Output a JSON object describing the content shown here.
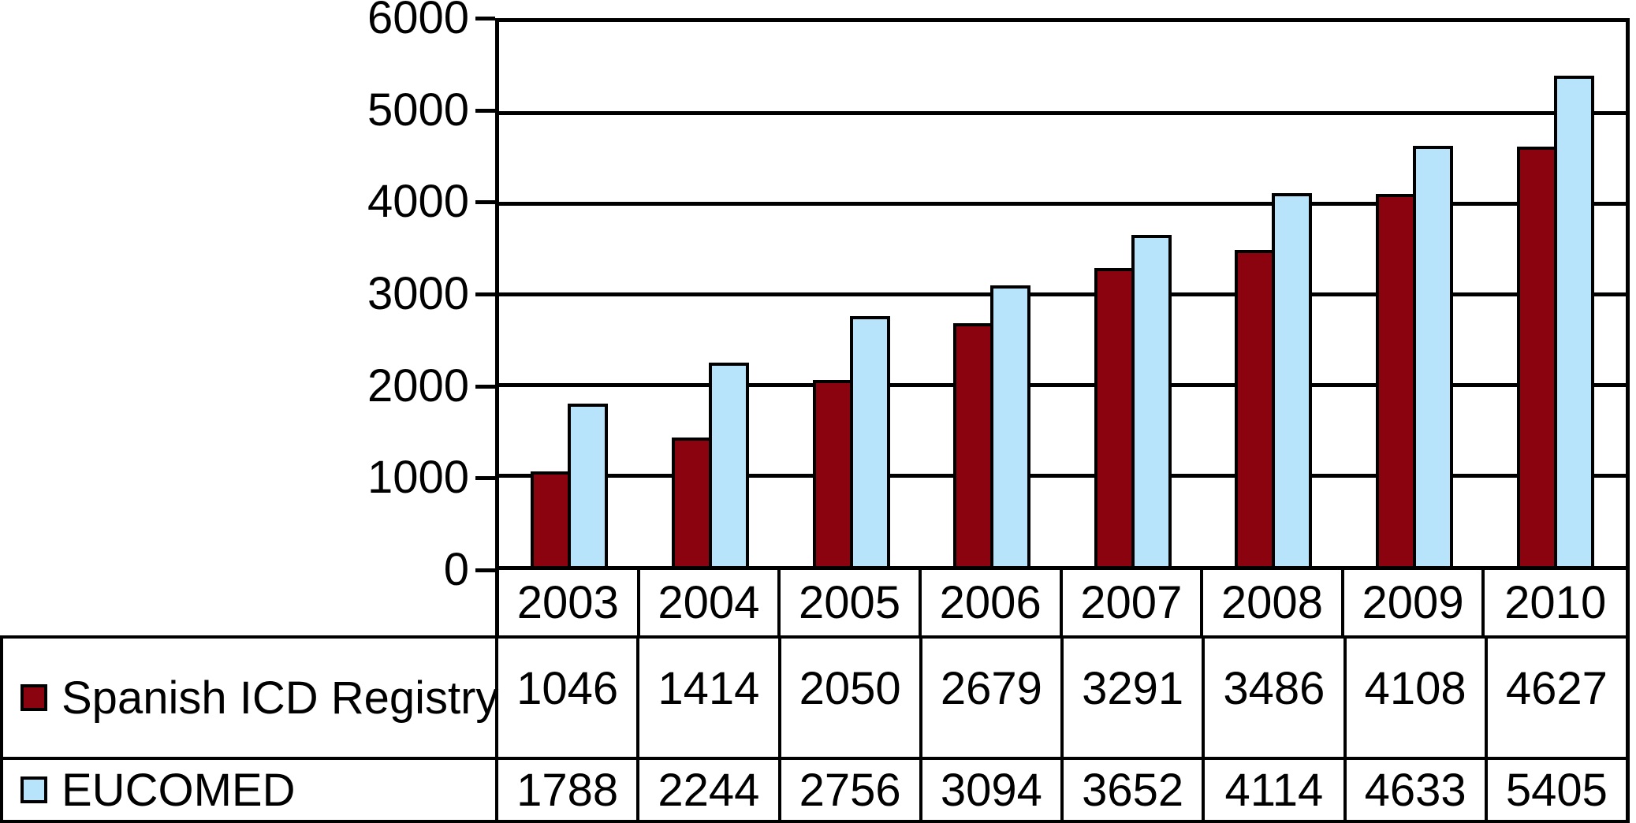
{
  "chart_data": {
    "type": "bar",
    "categories": [
      "2003",
      "2004",
      "2005",
      "2006",
      "2007",
      "2008",
      "2009",
      "2010"
    ],
    "series": [
      {
        "name": "Spanish ICD Registry",
        "key": "spanish-icd-registry",
        "color": "#8B030F",
        "values": [
          1046,
          1414,
          2050,
          2679,
          3291,
          3486,
          4108,
          4627
        ]
      },
      {
        "name": "EUCOMED",
        "key": "eucomed",
        "color": "#B8E4FB",
        "values": [
          1788,
          2244,
          2756,
          3094,
          3652,
          4114,
          4633,
          5405
        ]
      }
    ],
    "ylim": [
      0,
      6000
    ],
    "y_ticks": [
      0,
      1000,
      2000,
      3000,
      4000,
      5000,
      6000
    ],
    "y_tick_labels": [
      "0",
      "1000",
      "2000",
      "3000",
      "4000",
      "5000",
      "6000"
    ],
    "grid": "horizontal",
    "legend_position": "left column of data table below chart",
    "bar_border_color": "#000000",
    "background_color": "#FFFFFF"
  }
}
